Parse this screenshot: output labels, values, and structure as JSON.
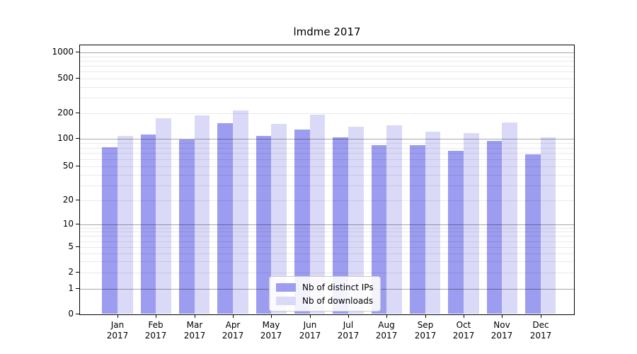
{
  "chart_data": {
    "type": "bar",
    "title": "lmdme 2017",
    "x_categories": [
      "Jan",
      "Feb",
      "Mar",
      "Apr",
      "May",
      "Jun",
      "Jul",
      "Aug",
      "Sep",
      "Oct",
      "Nov",
      "Dec"
    ],
    "x_year": "2017",
    "y_scale": "symlog",
    "y_ticks": [
      0,
      1,
      2,
      5,
      10,
      20,
      50,
      100,
      200,
      500,
      1000
    ],
    "y_range": [
      0,
      1000
    ],
    "grid": true,
    "legend_position": "bottom-center",
    "series": [
      {
        "name": "Nb of distinct IPs",
        "color": "#9c9cf0",
        "values": [
          80,
          111,
          97,
          150,
          105,
          127,
          102,
          84,
          83,
          73,
          93,
          67
        ]
      },
      {
        "name": "Nb of downloads",
        "color": "#dadaf8",
        "values": [
          105,
          170,
          185,
          210,
          148,
          188,
          137,
          141,
          118,
          114,
          153,
          102
        ]
      }
    ]
  },
  "colors": {
    "major_grid": "#ababab",
    "minor_grid": "#e7e7e7",
    "axis": "#000000",
    "legend_border": "#cccccc",
    "legend_background": "#ffffff",
    "background": "#ffffff"
  }
}
